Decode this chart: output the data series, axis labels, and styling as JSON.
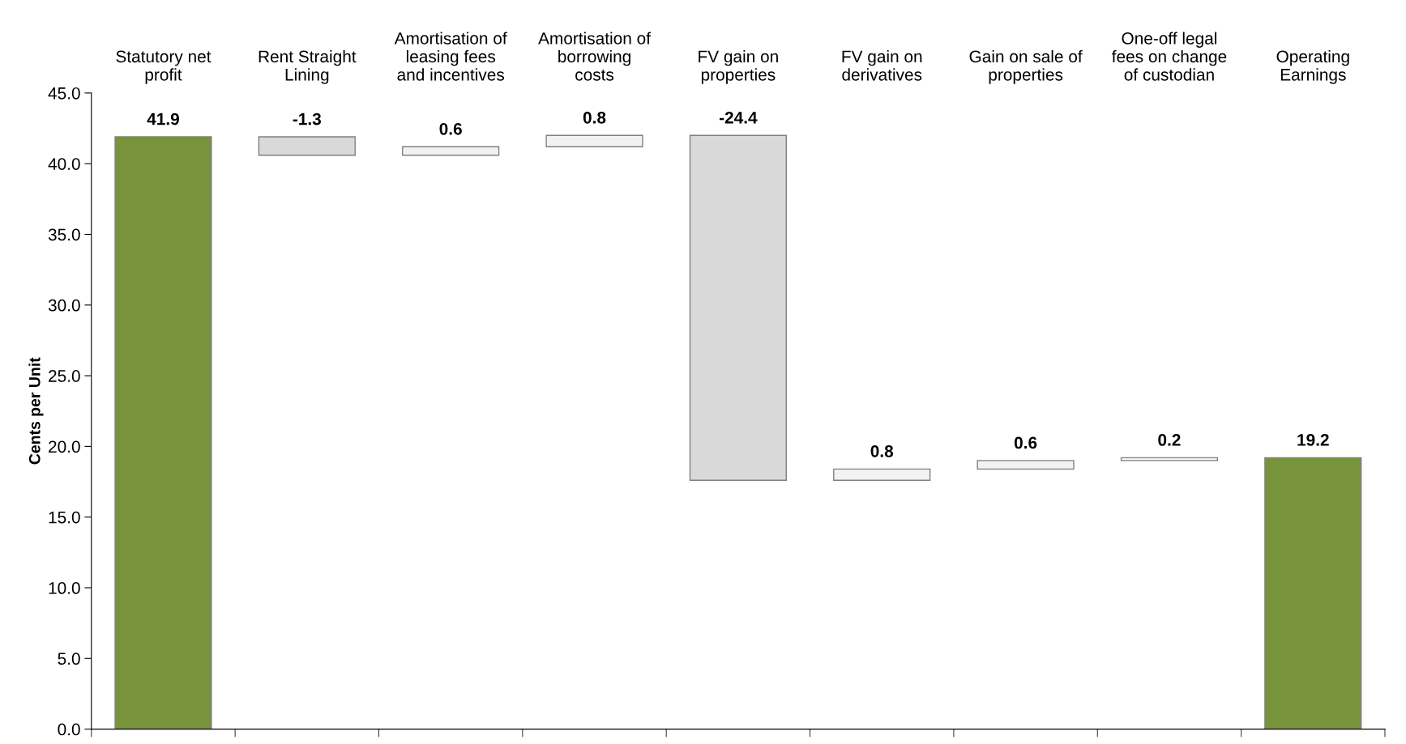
{
  "chart_data": {
    "type": "bar",
    "ylabel": "Cents per Unit",
    "categories": [
      "Statutory net\nprofit",
      "Rent Straight\nLining",
      "Amortisation of\nleasing fees\nand incentives",
      "Amortisation of\nborrowing\ncosts",
      "FV gain on\nproperties",
      "FV gain on\nderivatives",
      "Gain on sale of\nproperties",
      "One-off legal\nfees on change\nof custodian",
      "Operating\nEarnings"
    ],
    "values": [
      41.9,
      -1.3,
      0.6,
      0.8,
      -24.4,
      0.8,
      0.6,
      0.2,
      19.2
    ],
    "base": [
      0,
      41.9,
      40.6,
      41.2,
      42.0,
      17.6,
      18.4,
      19.0,
      0
    ],
    "colors": [
      "#77933c",
      "#d9d9d9",
      "#f2f2f2",
      "#f2f2f2",
      "#d9d9d9",
      "#f2f2f2",
      "#f2f2f2",
      "#f2f2f2",
      "#77933c"
    ],
    "data_labels": true,
    "ylim": [
      0,
      45
    ],
    "yticks": [
      {
        "value": 0,
        "label": "0.0"
      },
      {
        "value": 5,
        "label": "5.0"
      },
      {
        "value": 10,
        "label": "10.0"
      },
      {
        "value": 15,
        "label": "15.0"
      },
      {
        "value": 20,
        "label": "20.0"
      },
      {
        "value": 25,
        "label": "25.0"
      },
      {
        "value": 30,
        "label": "30.0"
      },
      {
        "value": 35,
        "label": "35.0"
      },
      {
        "value": 40,
        "label": "40.0"
      },
      {
        "value": 45,
        "label": "45.0"
      }
    ],
    "grid": false,
    "legend": false
  }
}
